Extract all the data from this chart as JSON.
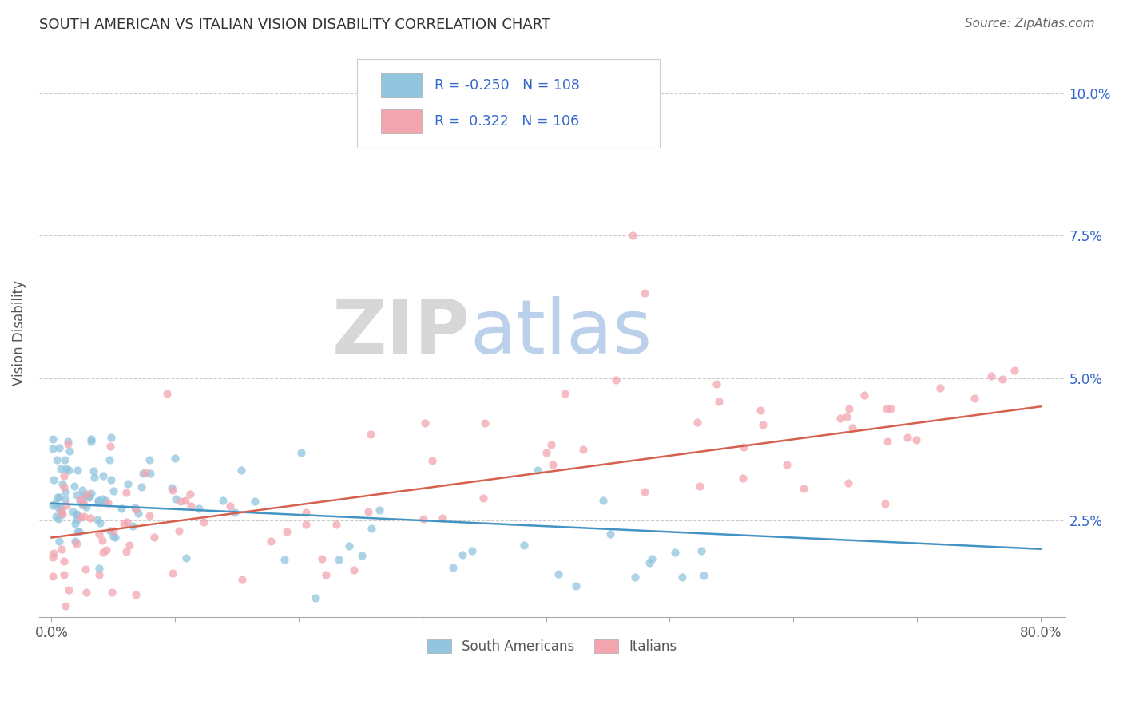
{
  "title": "SOUTH AMERICAN VS ITALIAN VISION DISABILITY CORRELATION CHART",
  "source_text": "Source: ZipAtlas.com",
  "ylabel": "Vision Disability",
  "xlim": [
    -0.01,
    0.82
  ],
  "ylim": [
    0.008,
    0.108
  ],
  "yticks": [
    0.025,
    0.05,
    0.075,
    0.1
  ],
  "ytick_labels": [
    "2.5%",
    "5.0%",
    "7.5%",
    "10.0%"
  ],
  "xtick_positions": [
    0.0,
    0.1,
    0.2,
    0.3,
    0.4,
    0.5,
    0.6,
    0.7,
    0.8
  ],
  "xtick_labels": [
    "0.0%",
    "",
    "",
    "",
    "",
    "",
    "",
    "",
    "80.0%"
  ],
  "color_blue": "#92c5de",
  "color_pink": "#f4a6b0",
  "color_blue_line": "#4393c3",
  "color_pink_line": "#d6604d",
  "color_text_blue": "#3366cc",
  "watermark_zip": "ZIP",
  "watermark_atlas": "atlas",
  "legend_label1": "South Americans",
  "legend_label2": "Italians",
  "seed": 12345
}
